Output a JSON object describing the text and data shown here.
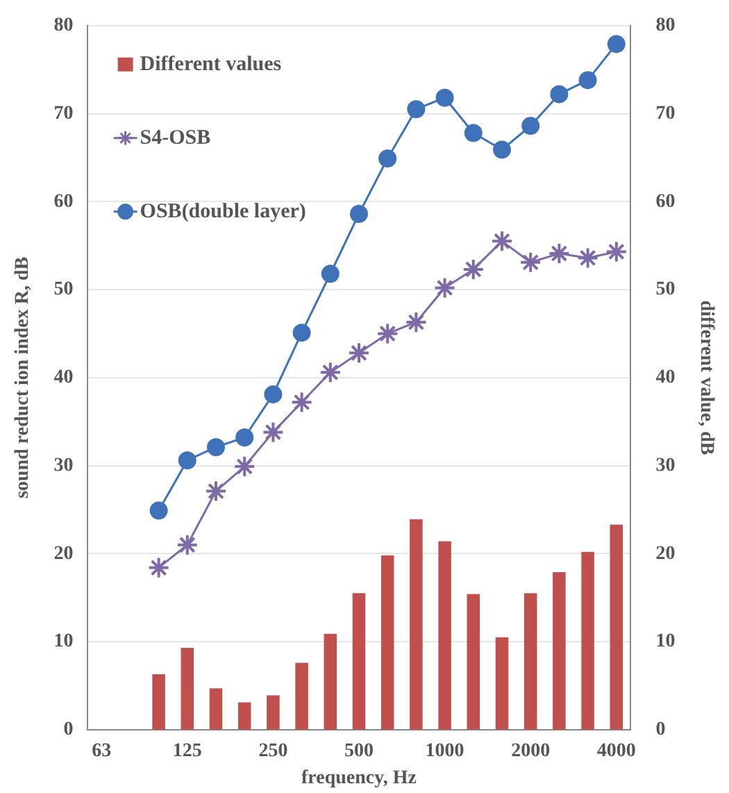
{
  "chart_data": {
    "type": "line",
    "xlabel": "frequency, Hz",
    "ylabel": "sound reduct ion index R, dB",
    "y2label": "different value, dB",
    "categories": [
      "63",
      null,
      null,
      "125",
      null,
      null,
      "250",
      null,
      null,
      "500",
      null,
      null,
      "1000",
      null,
      null,
      "2000",
      null,
      null,
      "4000"
    ],
    "series": [
      {
        "name": "Different values",
        "type": "bar",
        "axis": "y2",
        "color": "#c0504d",
        "values": [
          null,
          null,
          6.3,
          9.3,
          4.7,
          3.1,
          3.9,
          7.6,
          10.9,
          15.5,
          19.8,
          23.9,
          21.4,
          15.4,
          10.5,
          15.5,
          17.9,
          20.2,
          23.3
        ]
      },
      {
        "name": "S4-OSB",
        "marker": "cross",
        "color": "#7f6aa8",
        "values": [
          null,
          null,
          18.4,
          21.0,
          27.1,
          29.9,
          33.8,
          37.2,
          40.6,
          42.8,
          45.0,
          46.3,
          50.2,
          52.3,
          55.5,
          53.1,
          54.1,
          53.6,
          54.3
        ]
      },
      {
        "name": "OSB(double layer)",
        "marker": "circle",
        "color": "#3f72b8",
        "values": [
          null,
          null,
          24.9,
          30.6,
          32.1,
          33.2,
          38.1,
          45.1,
          51.8,
          58.6,
          64.9,
          70.5,
          71.8,
          67.8,
          65.9,
          68.6,
          72.2,
          73.8,
          77.9
        ]
      }
    ],
    "ylim": [
      0,
      80
    ],
    "yticks": [
      0,
      10,
      20,
      30,
      40,
      50,
      60,
      70,
      80
    ],
    "y2lim": [
      0,
      80
    ],
    "y2ticks": [
      0,
      10,
      20,
      30,
      40,
      50,
      60,
      70,
      80
    ],
    "grid": "y",
    "legend": "top left"
  }
}
